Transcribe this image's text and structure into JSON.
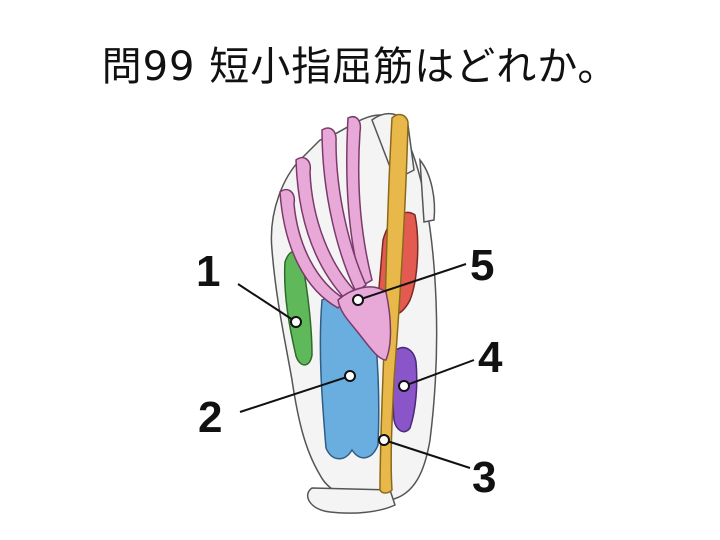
{
  "slide": {
    "title": "問99 短小指屈筋はどれか。"
  },
  "labels": [
    {
      "id": "1",
      "text": "1",
      "structure": "green-muscle",
      "color": "#5fb85a"
    },
    {
      "id": "2",
      "text": "2",
      "structure": "blue-muscle",
      "color": "#6aaee0"
    },
    {
      "id": "3",
      "text": "3",
      "structure": "yellow-tendon",
      "color": "#e8b84a"
    },
    {
      "id": "4",
      "text": "4",
      "structure": "purple-muscle",
      "color": "#8a55c8"
    },
    {
      "id": "5",
      "text": "5",
      "structure": "pink-tendons",
      "color": "#e8a8d8"
    }
  ],
  "colors": {
    "bone_fill": "#f4f4f4",
    "bone_outline": "#555555",
    "red_muscle": "#e25a50"
  }
}
